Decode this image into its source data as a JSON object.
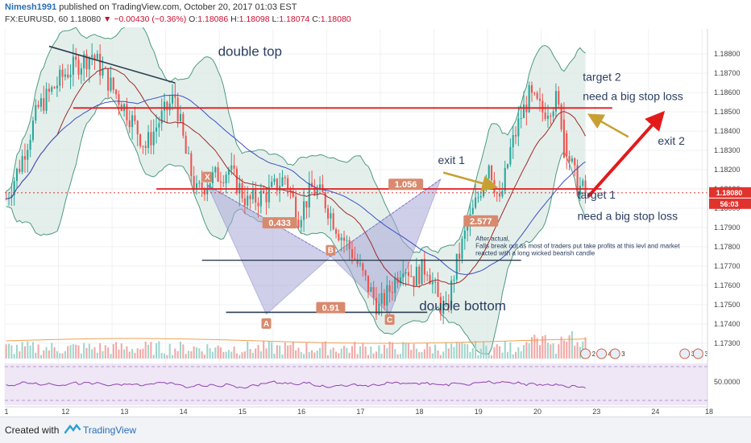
{
  "header": {
    "author": "Nimesh1991",
    "published": " published on TradingView.com, October 20, 2017 01:03 EST",
    "symbol": "FX:EURUSD, 60",
    "last": "1.18080",
    "change": "−0.00430 (−0.36%)",
    "o_label": "O:",
    "o_value": "1.18086",
    "h_label": "H:",
    "h_value": "1.18098",
    "l_label": "L:",
    "l_value": "1.18074",
    "c_label": "C:",
    "c_value": "1.18080"
  },
  "footer": {
    "created_with": "Created with",
    "brand": "TradingView"
  },
  "colors": {
    "up": "#26a69a",
    "down": "#ef5350",
    "resistance": "#e31a1c",
    "arrow": "#e31a1c",
    "exit_arrow": "#c8a032",
    "band_fill": "#dbe9e4",
    "pattern_fill": "#a9a8d8",
    "rsi_line": "#8e44ad",
    "rsi_bg": "#efe6f6"
  },
  "chart_data": {
    "type": "candlestick",
    "x_tick_labels": [
      "1",
      "12",
      "13",
      "14",
      "15",
      "16",
      "17",
      "18",
      "19",
      "20",
      "23",
      "24",
      "18"
    ],
    "y_axis": {
      "ylim": [
        1.1722,
        1.1893
      ],
      "tick_labels": [
        "1.18800",
        "1.18700",
        "1.18600",
        "1.18500",
        "1.18400",
        "1.18300",
        "1.18200",
        "1.18100",
        "1.18000",
        "1.17900",
        "1.17800",
        "1.17700",
        "1.17600",
        "1.17500",
        "1.17400",
        "1.17300"
      ],
      "ticks": [
        1.188,
        1.187,
        1.186,
        1.185,
        1.184,
        1.183,
        1.182,
        1.181,
        1.18,
        1.179,
        1.178,
        1.177,
        1.176,
        1.175,
        1.174,
        1.173
      ]
    },
    "price_badge": "1.18080",
    "time_badge": "56:03",
    "rsi_tick": "50.0000",
    "path": [
      [
        0,
        1.1805
      ],
      [
        5,
        1.1822
      ],
      [
        12,
        1.1852
      ],
      [
        22,
        1.187
      ],
      [
        32,
        1.188
      ],
      [
        38,
        1.1866
      ],
      [
        46,
        1.1848
      ],
      [
        52,
        1.1832
      ],
      [
        57,
        1.1845
      ],
      [
        63,
        1.1858
      ],
      [
        67,
        1.1828
      ],
      [
        71,
        1.1808
      ],
      [
        76,
        1.1815
      ],
      [
        83,
        1.182
      ],
      [
        90,
        1.1803
      ],
      [
        98,
        1.1808
      ],
      [
        104,
        1.1816
      ],
      [
        109,
        1.1796
      ],
      [
        114,
        1.181
      ],
      [
        118,
        1.1806
      ],
      [
        124,
        1.1788
      ],
      [
        129,
        1.1777
      ],
      [
        134,
        1.1762
      ],
      [
        139,
        1.1748
      ],
      [
        144,
        1.176
      ],
      [
        148,
        1.1772
      ],
      [
        152,
        1.1764
      ],
      [
        157,
        1.177
      ],
      [
        161,
        1.1752
      ],
      [
        164,
        1.1745
      ],
      [
        167,
        1.1766
      ],
      [
        171,
        1.1786
      ],
      [
        176,
        1.1806
      ],
      [
        180,
        1.1824
      ],
      [
        184,
        1.1802
      ],
      [
        188,
        1.183
      ],
      [
        192,
        1.1848
      ],
      [
        195,
        1.1858
      ],
      [
        200,
        1.185
      ],
      [
        205,
        1.1856
      ],
      [
        208,
        1.184
      ],
      [
        210,
        1.1826
      ],
      [
        213,
        1.1812
      ],
      [
        216,
        1.1808
      ]
    ],
    "x_day_ticks": [
      0,
      20,
      40,
      60,
      80,
      100,
      120,
      140,
      160,
      180,
      200,
      220,
      240,
      260
    ],
    "overlays": {
      "resistance": {
        "price": 1.1852,
        "from": 25,
        "to": 226
      },
      "support": {
        "price": 1.181,
        "from": 56,
        "to": 222
      },
      "dotted": {
        "price": 1.1808
      },
      "b_level": {
        "price": 1.1773,
        "from": 73,
        "to": 192
      },
      "double_bottom_line": {
        "price": 1.1746,
        "from": 82,
        "to": 157
      },
      "double_top_trend": {
        "from": [
          16,
          1.1884
        ],
        "to": [
          63,
          1.1865
        ]
      },
      "xabcd": {
        "X": [
          75,
          1.1812
        ],
        "A": [
          97,
          1.1745
        ],
        "B": [
          121,
          1.1775
        ],
        "C": [
          143,
          1.1745
        ],
        "D": [
          162,
          1.1815
        ]
      },
      "ratio_labels": [
        {
          "text": "0.433",
          "at": [
            102,
            1.1792
          ]
        },
        {
          "text": "1.056",
          "at": [
            149,
            1.1812
          ]
        },
        {
          "text": "0.91",
          "at": [
            121,
            1.1748
          ]
        },
        {
          "text": "2.577",
          "at": [
            177,
            1.1793
          ]
        }
      ],
      "point_labels": [
        {
          "text": "X",
          "at": [
            75,
            1.1816
          ]
        },
        {
          "text": "A",
          "at": [
            97,
            1.174
          ]
        },
        {
          "text": "B",
          "at": [
            121,
            1.1778
          ]
        },
        {
          "text": "C",
          "at": [
            143,
            1.1742
          ]
        }
      ],
      "texts": [
        {
          "text": "double top",
          "at": [
            79,
            1.1879
          ],
          "size": 17
        },
        {
          "text": "double bottom",
          "at": [
            154,
            1.1747
          ],
          "size": 17
        },
        {
          "text": "target 2",
          "at": [
            215,
            1.1866
          ],
          "size": 14
        },
        {
          "text": "need a big stop loss",
          "at": [
            215,
            1.1856
          ],
          "size": 14
        },
        {
          "text": "exit 2",
          "at": [
            243,
            1.1833
          ],
          "size": 14
        },
        {
          "text": "exit 1",
          "at": [
            161,
            1.1823
          ],
          "size": 14
        },
        {
          "text": "target 1",
          "at": [
            213,
            1.1805
          ],
          "size": 14
        },
        {
          "text": "need a big stop loss",
          "at": [
            213,
            1.1794
          ],
          "size": 14
        }
      ],
      "after_actual": [
        "After actual,",
        "Falls break out as most of traders put take profits at this levl and market",
        "reacted with a long wicked bearish candle"
      ],
      "after_actual_at": [
        175,
        1.1783
      ]
    }
  }
}
